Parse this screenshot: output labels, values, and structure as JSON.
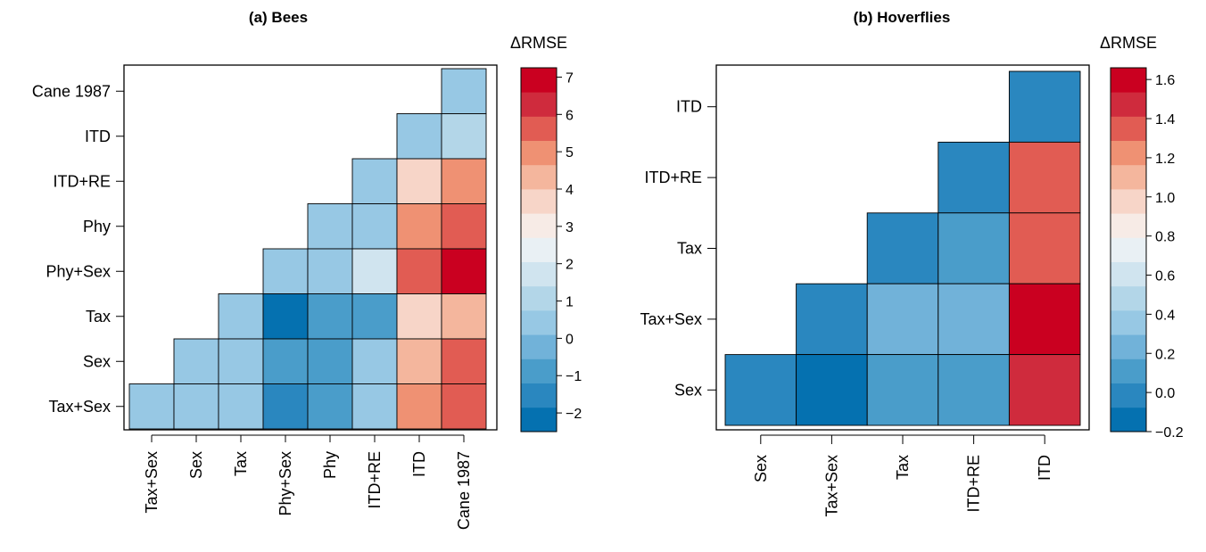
{
  "palette": [
    "#0571b0",
    "#2a87bf",
    "#4a9dca",
    "#71b2d9",
    "#97c8e4",
    "#b3d6e8",
    "#d0e4ef",
    "#e9f0f4",
    "#f7ebe6",
    "#f7d5c8",
    "#f4b69d",
    "#ef9173",
    "#e15c53",
    "#cf2b3d",
    "#ca0020"
  ],
  "chart_data": [
    {
      "type": "heatmap",
      "title": "(a) Bees",
      "legend_title": "ΔRMSE",
      "row_labels": [
        "Cane 1987",
        "ITD",
        "ITD+RE",
        "Phy",
        "Phy+Sex",
        "Tax",
        "Sex",
        "Tax+Sex"
      ],
      "col_labels": [
        "Tax+Sex",
        "Sex",
        "Tax",
        "Phy+Sex",
        "Phy",
        "ITD+RE",
        "ITD",
        "Cane 1987"
      ],
      "values": [
        [
          null,
          null,
          null,
          null,
          null,
          null,
          null,
          0.2
        ],
        [
          null,
          null,
          null,
          null,
          null,
          null,
          0.2,
          1.3
        ],
        [
          null,
          null,
          null,
          null,
          null,
          0.2,
          3.8,
          5.2
        ],
        [
          null,
          null,
          null,
          null,
          0.3,
          0.5,
          4.7,
          5.9
        ],
        [
          null,
          null,
          null,
          0.2,
          0.6,
          1.5,
          5.9,
          6.9
        ],
        [
          null,
          null,
          0.3,
          -2.3,
          -1.2,
          -0.6,
          3.4,
          4.6
        ],
        [
          null,
          0.2,
          0.6,
          -1.2,
          -0.6,
          0.6,
          4.6,
          5.9
        ],
        [
          0.3,
          0.3,
          0.6,
          -1.3,
          -0.7,
          0.6,
          4.7,
          5.9
        ]
      ],
      "colorbar": {
        "min": -2.5,
        "max": 7.25,
        "ticks": [
          -2,
          -1,
          0,
          1,
          2,
          3,
          4,
          5,
          6,
          7
        ],
        "tick_labels": [
          "−2",
          "−1",
          "0",
          "1",
          "2",
          "3",
          "4",
          "5",
          "6",
          "7"
        ]
      }
    },
    {
      "type": "heatmap",
      "title": "(b) Hoverflies",
      "legend_title": "ΔRMSE",
      "row_labels": [
        "ITD",
        "ITD+RE",
        "Tax",
        "Tax+Sex",
        "Sex"
      ],
      "col_labels": [
        "Sex",
        "Tax+Sex",
        "Tax",
        "ITD+RE",
        "ITD"
      ],
      "values": [
        [
          null,
          null,
          null,
          null,
          -0.02
        ],
        [
          null,
          null,
          null,
          -0.02,
          1.39
        ],
        [
          null,
          null,
          -0.03,
          0.05,
          1.39
        ],
        [
          null,
          -0.03,
          0.25,
          0.21,
          1.61
        ],
        [
          -0.03,
          -0.15,
          0.14,
          0.08,
          1.5
        ]
      ],
      "colorbar": {
        "min": -0.2,
        "max": 1.66,
        "ticks": [
          -0.2,
          0.0,
          0.2,
          0.4,
          0.6,
          0.8,
          1.0,
          1.2,
          1.4,
          1.6
        ],
        "tick_labels": [
          "−0.2",
          "0.0",
          "0.2",
          "0.4",
          "0.6",
          "0.8",
          "1.0",
          "1.2",
          "1.4",
          "1.6"
        ]
      }
    }
  ]
}
